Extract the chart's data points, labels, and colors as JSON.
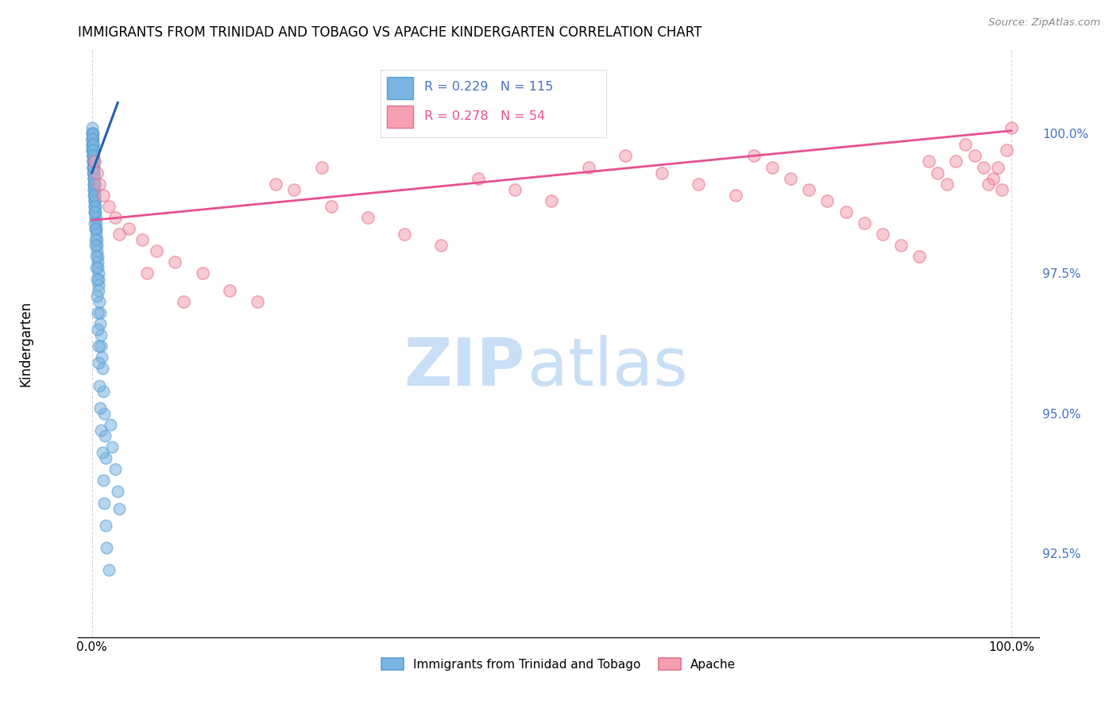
{
  "title": "IMMIGRANTS FROM TRINIDAD AND TOBAGO VS APACHE KINDERGARTEN CORRELATION CHART",
  "source": "Source: ZipAtlas.com",
  "ylabel": "Kindergarten",
  "ytick_values": [
    92.5,
    95.0,
    97.5,
    100.0
  ],
  "xlim": [
    -1.5,
    103
  ],
  "ylim": [
    91.0,
    101.5
  ],
  "blue_color": "#7ab4e0",
  "blue_edge_color": "#5a9fd4",
  "pink_color": "#f4a0b0",
  "pink_edge_color": "#e87090",
  "blue_line_color": "#2060b0",
  "pink_line_color": "#e85090",
  "ytick_color": "#4472C4",
  "legend_blue_r": "R = 0.229",
  "legend_blue_n": "N = 115",
  "legend_pink_r": "R = 0.278",
  "legend_pink_n": "N = 54",
  "watermark_zip_color": "#c8dff5",
  "watermark_atlas_color": "#c8dff5",
  "blue_trendline_x": [
    0.0,
    2.8
  ],
  "blue_trendline_y": [
    99.3,
    100.55
  ],
  "pink_trendline_x": [
    0.0,
    100.0
  ],
  "pink_trendline_y": [
    98.45,
    100.05
  ],
  "blue_x": [
    0.05,
    0.05,
    0.05,
    0.05,
    0.05,
    0.05,
    0.08,
    0.08,
    0.08,
    0.1,
    0.1,
    0.1,
    0.1,
    0.12,
    0.12,
    0.15,
    0.15,
    0.15,
    0.18,
    0.18,
    0.2,
    0.2,
    0.2,
    0.22,
    0.25,
    0.25,
    0.28,
    0.28,
    0.3,
    0.3,
    0.32,
    0.35,
    0.35,
    0.38,
    0.4,
    0.4,
    0.42,
    0.45,
    0.48,
    0.5,
    0.52,
    0.55,
    0.6,
    0.62,
    0.65,
    0.68,
    0.7,
    0.72,
    0.75,
    0.8,
    0.85,
    0.9,
    0.95,
    1.0,
    1.05,
    1.1,
    1.2,
    1.3,
    1.4,
    1.5,
    0.05,
    0.05,
    0.05,
    0.06,
    0.06,
    0.07,
    0.07,
    0.08,
    0.09,
    0.09,
    0.1,
    0.1,
    0.1,
    0.1,
    0.12,
    0.12,
    0.14,
    0.15,
    0.15,
    0.16,
    0.18,
    0.18,
    0.2,
    0.22,
    0.24,
    0.25,
    0.27,
    0.28,
    0.3,
    0.32,
    0.35,
    0.38,
    0.4,
    0.43,
    0.45,
    0.5,
    0.55,
    0.6,
    0.65,
    0.7,
    0.75,
    0.8,
    0.9,
    1.0,
    1.1,
    1.2,
    1.3,
    1.45,
    1.6,
    1.8,
    2.0,
    2.2,
    2.5,
    2.8,
    3.0
  ],
  "blue_y": [
    100.0,
    100.0,
    99.8,
    99.9,
    99.7,
    100.1,
    99.9,
    100.0,
    99.8,
    99.7,
    99.8,
    99.6,
    99.5,
    99.6,
    99.4,
    99.5,
    99.3,
    99.2,
    99.4,
    99.1,
    99.3,
    99.0,
    98.9,
    99.2,
    99.1,
    98.8,
    99.0,
    98.7,
    98.9,
    98.6,
    98.8,
    98.7,
    98.5,
    98.6,
    98.5,
    98.3,
    98.4,
    98.3,
    98.2,
    98.1,
    98.0,
    97.9,
    97.8,
    97.7,
    97.6,
    97.5,
    97.4,
    97.3,
    97.2,
    97.0,
    96.8,
    96.6,
    96.4,
    96.2,
    96.0,
    95.8,
    95.4,
    95.0,
    94.6,
    94.2,
    99.9,
    100.0,
    99.8,
    99.7,
    99.9,
    99.8,
    99.6,
    99.7,
    99.5,
    99.8,
    99.6,
    99.4,
    99.7,
    99.5,
    99.3,
    99.6,
    99.4,
    99.2,
    99.5,
    99.3,
    99.1,
    99.4,
    99.2,
    99.0,
    98.8,
    99.1,
    98.9,
    98.7,
    98.6,
    98.4,
    98.3,
    98.1,
    98.0,
    97.8,
    97.6,
    97.4,
    97.1,
    96.8,
    96.5,
    96.2,
    95.9,
    95.5,
    95.1,
    94.7,
    94.3,
    93.8,
    93.4,
    93.0,
    92.6,
    92.2,
    94.8,
    94.4,
    94.0,
    93.6,
    93.3
  ],
  "pink_x": [
    0.3,
    0.5,
    0.8,
    1.2,
    1.8,
    2.5,
    4.0,
    5.5,
    7.0,
    9.0,
    12.0,
    15.0,
    18.0,
    22.0,
    26.0,
    30.0,
    34.0,
    38.0,
    42.0,
    46.0,
    50.0,
    54.0,
    58.0,
    62.0,
    66.0,
    70.0,
    72.0,
    74.0,
    76.0,
    78.0,
    80.0,
    82.0,
    84.0,
    86.0,
    88.0,
    90.0,
    91.0,
    92.0,
    93.0,
    94.0,
    95.0,
    96.0,
    97.0,
    98.0,
    99.0,
    100.0,
    99.5,
    98.5,
    97.5,
    3.0,
    6.0,
    10.0,
    20.0,
    25.0
  ],
  "pink_y": [
    99.5,
    99.3,
    99.1,
    98.9,
    98.7,
    98.5,
    98.3,
    98.1,
    97.9,
    97.7,
    97.5,
    97.2,
    97.0,
    99.0,
    98.7,
    98.5,
    98.2,
    98.0,
    99.2,
    99.0,
    98.8,
    99.4,
    99.6,
    99.3,
    99.1,
    98.9,
    99.6,
    99.4,
    99.2,
    99.0,
    98.8,
    98.6,
    98.4,
    98.2,
    98.0,
    97.8,
    99.5,
    99.3,
    99.1,
    99.5,
    99.8,
    99.6,
    99.4,
    99.2,
    99.0,
    100.1,
    99.7,
    99.4,
    99.1,
    98.2,
    97.5,
    97.0,
    99.1,
    99.4
  ]
}
